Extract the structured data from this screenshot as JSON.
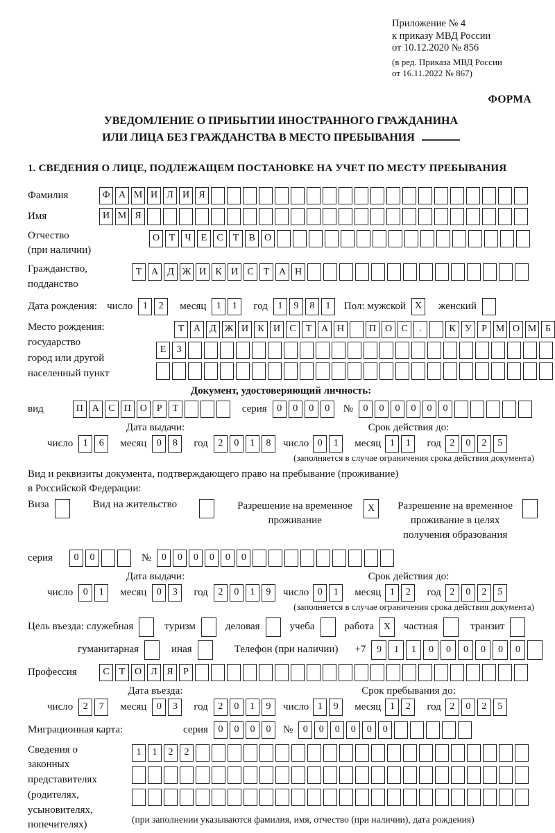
{
  "header": {
    "appendix_lines": [
      "Приложение № 4",
      "к приказу МВД России",
      "от 10.12.2020 № 856"
    ],
    "revision_lines": [
      "(в ред. Приказа МВД России",
      "от 16.11.2022 № 867)"
    ],
    "forma": "ФОРМА"
  },
  "title": {
    "line1": "УВЕДОМЛЕНИЕ О ПРИБЫТИИ ИНОСТРАННОГО ГРАЖДАНИНА",
    "line2": "ИЛИ ЛИЦА БЕЗ ГРАЖДАНСТВА В МЕСТО ПРЕБЫВАНИЯ"
  },
  "section1_heading": "1. СВЕДЕНИЯ О ЛИЦЕ, ПОДЛЕЖАЩЕМ ПОСТАНОВКЕ НА УЧЕТ ПО МЕСТУ ПРЕБЫВАНИЯ",
  "labels": {
    "surname": "Фамилия",
    "name": "Имя",
    "patronymic1": "Отчество",
    "patronymic2": "(при наличии)",
    "citizenship1": "Гражданство,",
    "citizenship2": "подданство",
    "birthdate": "Дата рождения:",
    "day": "число",
    "month": "месяц",
    "year": "год",
    "sex_male": "Пол: мужской",
    "sex_female": "женский",
    "birthplace": "Место рождения:",
    "state": "государство",
    "city1": "город или другой",
    "city2": "населенный пункт",
    "iddoc_heading": "Документ, удостоверяющий личность:",
    "kind": "вид",
    "series": "серия",
    "number": "№",
    "issue_date": "Дата выдачи:",
    "valid_until": "Срок действия до:",
    "valid_note": "(заполняется в случае ограничения срока действия документа)",
    "residence_doc1": "Вид и реквизиты документа, подтверждающего право на пребывание (проживание)",
    "residence_doc2": "в Российской Федерации:",
    "visa": "Виза",
    "residence_permit": "Вид на жительство",
    "temp_residence1": "Разрешение на временное",
    "temp_residence2": "проживание",
    "temp_edu1": "Разрешение на временное",
    "temp_edu2": "проживание в целях",
    "temp_edu3": "получения образования",
    "purpose": "Цель въезда: служебная",
    "tourism": "туризм",
    "business": "деловая",
    "study": "учеба",
    "work": "работа",
    "private": "частная",
    "transit": "транзит",
    "humanitarian": "гуманитарная",
    "other": "иная",
    "phone": "Телефон (при наличии)",
    "phone_prefix": "+7",
    "profession": "Профессия",
    "entry_date": "Дата въезда:",
    "stay_until": "Срок пребывания до:",
    "migration_card": "Миграционная карта:",
    "representatives": [
      "Сведения о",
      "законных",
      "представителях",
      "(родителях,",
      "усыновителях,",
      "попечителях)"
    ],
    "representatives_note": "(при заполнении указываются фамилия, имя, отчество (при наличии), дата рождения)"
  },
  "cells": {
    "surname": {
      "v": "ФАМИЛИЯ",
      "n": 27
    },
    "name": {
      "v": "ИМЯ",
      "n": 27
    },
    "patronymic": {
      "v": "ОТЧЕСТВО",
      "n": 24
    },
    "citizenship": {
      "v": "ТАДЖИКИСТАН",
      "n": 25
    },
    "birth_day": {
      "v": "12",
      "n": 2
    },
    "birth_month": {
      "v": "11",
      "n": 2
    },
    "birth_year": {
      "v": "1981",
      "n": 4
    },
    "sex_male": {
      "v": "X",
      "n": 1
    },
    "sex_female": {
      "v": "",
      "n": 1
    },
    "birthplace1": {
      "v": "ТАДЖИКИСТАН ПОС. КУРМОМБ",
      "n": 24
    },
    "birthplace2": {
      "v": "ЕЗ",
      "n": 25
    },
    "birthplace3": {
      "v": "",
      "n": 25
    },
    "iddoc_kind": {
      "v": "ПАСПОРТ",
      "n": 10
    },
    "iddoc_series": {
      "v": "0000",
      "n": 4
    },
    "iddoc_number": {
      "v": "000000",
      "n": 11
    },
    "iddoc_issue_day": {
      "v": "16",
      "n": 2
    },
    "iddoc_issue_month": {
      "v": "08",
      "n": 2
    },
    "iddoc_issue_year": {
      "v": "2018",
      "n": 4
    },
    "iddoc_valid_day": {
      "v": "01",
      "n": 2
    },
    "iddoc_valid_month": {
      "v": "11",
      "n": 2
    },
    "iddoc_valid_year": {
      "v": "2025",
      "n": 4
    },
    "visa_cb": {
      "v": "",
      "n": 1
    },
    "residence_permit_cb": {
      "v": "",
      "n": 1
    },
    "temp_residence_cb": {
      "v": "X",
      "n": 1
    },
    "temp_edu_cb": {
      "v": "",
      "n": 1
    },
    "rdoc_series": {
      "v": "00",
      "n": 4
    },
    "rdoc_number": {
      "v": "000000",
      "n": 15
    },
    "rdoc_issue_day": {
      "v": "01",
      "n": 2
    },
    "rdoc_issue_month": {
      "v": "03",
      "n": 2
    },
    "rdoc_issue_year": {
      "v": "2019",
      "n": 4
    },
    "rdoc_valid_day": {
      "v": "01",
      "n": 2
    },
    "rdoc_valid_month": {
      "v": "12",
      "n": 2
    },
    "rdoc_valid_year": {
      "v": "2025",
      "n": 4
    },
    "purpose_official": {
      "v": "",
      "n": 1
    },
    "purpose_tourism": {
      "v": "",
      "n": 1
    },
    "purpose_business": {
      "v": "",
      "n": 1
    },
    "purpose_study": {
      "v": "",
      "n": 1
    },
    "purpose_work": {
      "v": "X",
      "n": 1
    },
    "purpose_private": {
      "v": "",
      "n": 1
    },
    "purpose_transit": {
      "v": "",
      "n": 1
    },
    "purpose_humanitarian": {
      "v": "",
      "n": 1
    },
    "purpose_other": {
      "v": "",
      "n": 1
    },
    "phone": {
      "v": "911000000",
      "n": 10
    },
    "profession": {
      "v": "СТОЛЯР",
      "n": 27
    },
    "entry_day": {
      "v": "27",
      "n": 2
    },
    "entry_month": {
      "v": "03",
      "n": 2
    },
    "entry_year": {
      "v": "2019",
      "n": 4
    },
    "stay_day": {
      "v": "19",
      "n": 2
    },
    "stay_month": {
      "v": "12",
      "n": 2
    },
    "stay_year": {
      "v": "2025",
      "n": 4
    },
    "mcard_series": {
      "v": "0000",
      "n": 4
    },
    "mcard_number": {
      "v": "000000",
      "n": 11
    },
    "rep_row1": {
      "v": "1122",
      "n": 25
    },
    "rep_row2": {
      "v": "",
      "n": 25
    },
    "rep_row3": {
      "v": "",
      "n": 25
    }
  }
}
